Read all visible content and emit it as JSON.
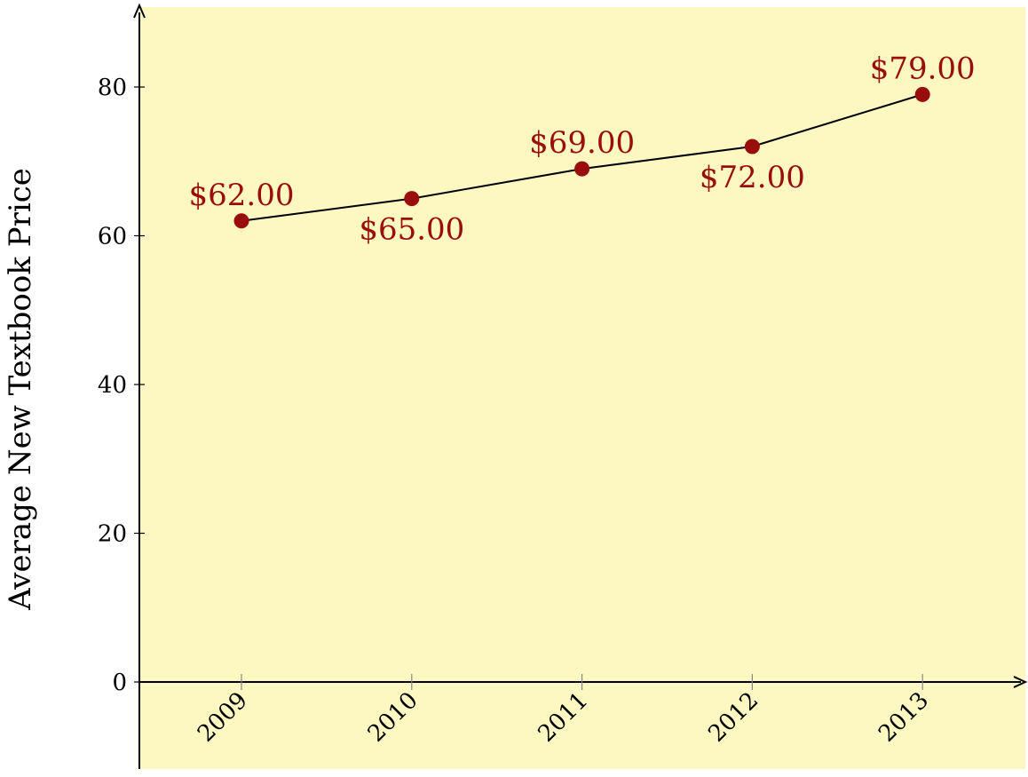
{
  "chart_data": {
    "type": "line",
    "categories": [
      "2009",
      "2010",
      "2011",
      "2012",
      "2013"
    ],
    "series": [
      {
        "values": [
          62,
          65,
          69,
          72,
          79
        ]
      }
    ],
    "data_labels": [
      "$62.00",
      "$65.00",
      "$69.00",
      "$72.00",
      "$79.00"
    ],
    "data_label_positions": [
      "above",
      "below",
      "above",
      "below",
      "above"
    ],
    "xlabel": "",
    "ylabel": "Average New Textbook Price",
    "y_ticks": [
      0,
      20,
      40,
      60,
      80
    ],
    "ylim": [
      -12,
      91
    ],
    "grid": false,
    "legend": "none",
    "colors": {
      "plot_background": "#fdf8c1",
      "marker": "#9a0d0d",
      "line": "#000000",
      "data_label": "#9a0d0d"
    }
  }
}
